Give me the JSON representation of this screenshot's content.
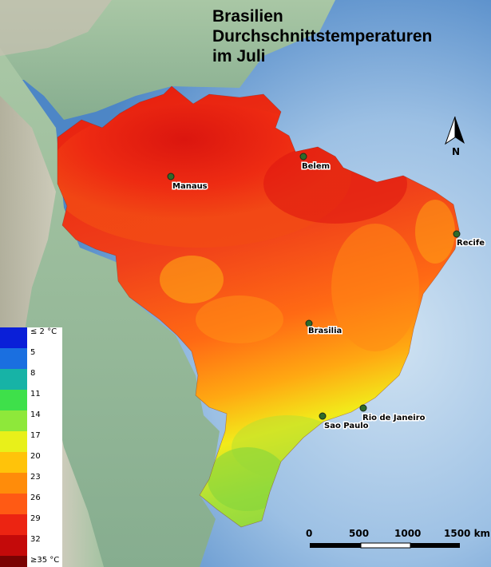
{
  "title": {
    "line1": "Brasilien",
    "line2": "Durchschnittstemperaturen",
    "line3": "im Juli"
  },
  "cities": [
    {
      "name": "Manaus"
    },
    {
      "name": "Belem"
    },
    {
      "name": "Recife"
    },
    {
      "name": "Brasilia"
    },
    {
      "name": "Sao Paulo"
    },
    {
      "name": "Rio de Janeiro"
    }
  ],
  "legend": [
    {
      "label": "≤ 2 °C",
      "color": "#0a1fd8"
    },
    {
      "label": "5",
      "color": "#1a6fe0"
    },
    {
      "label": "8",
      "color": "#17b3a6"
    },
    {
      "label": "11",
      "color": "#3ee04a"
    },
    {
      "label": "14",
      "color": "#8ee83a"
    },
    {
      "label": "17",
      "color": "#e8f01a"
    },
    {
      "label": "20",
      "color": "#ffc30a"
    },
    {
      "label": "23",
      "color": "#ff8c0a"
    },
    {
      "label": "26",
      "color": "#ff5a14"
    },
    {
      "label": "29",
      "color": "#ec2412"
    },
    {
      "label": "32",
      "color": "#c40a0a"
    },
    {
      "label": "≥35 °C",
      "color": "#7a0303"
    }
  ],
  "scale_bar": {
    "labels": [
      "0",
      "500",
      "1000",
      "1500 km"
    ]
  },
  "north_arrow": {
    "label": "N",
    "icon": "north-arrow-icon"
  },
  "colors": {
    "ocean": "#7fa8d8",
    "land": "#8fbf9a",
    "mountains": "#c8c0b0"
  }
}
